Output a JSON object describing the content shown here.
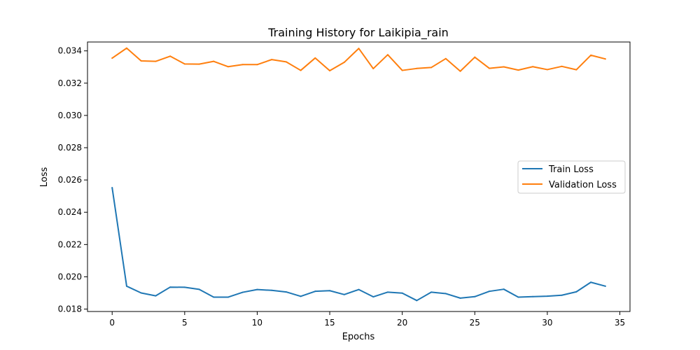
{
  "chart_data": {
    "type": "line",
    "title": "Training History for Laikipia_rain",
    "xlabel": "Epochs",
    "ylabel": "Loss",
    "xlim": [
      -1.7,
      35.7
    ],
    "ylim": [
      0.01785,
      0.03455
    ],
    "xticks": [
      0,
      5,
      10,
      15,
      20,
      25,
      30,
      35
    ],
    "xtick_labels": [
      "0",
      "5",
      "10",
      "15",
      "20",
      "25",
      "30",
      "35"
    ],
    "yticks": [
      0.018,
      0.02,
      0.022,
      0.024,
      0.026,
      0.028,
      0.03,
      0.032,
      0.034
    ],
    "ytick_labels": [
      "0.018",
      "0.020",
      "0.022",
      "0.024",
      "0.026",
      "0.028",
      "0.030",
      "0.032",
      "0.034"
    ],
    "grid": false,
    "legend_position": "center-right",
    "x": [
      0,
      1,
      2,
      3,
      4,
      5,
      6,
      7,
      8,
      9,
      10,
      11,
      12,
      13,
      14,
      15,
      16,
      17,
      18,
      19,
      20,
      21,
      22,
      23,
      24,
      25,
      26,
      27,
      28,
      29,
      30,
      31,
      32,
      33,
      34
    ],
    "series": [
      {
        "name": "Train Loss",
        "color": "#1f77b4",
        "values": [
          0.02552,
          0.01942,
          0.019,
          0.01882,
          0.01936,
          0.01935,
          0.01922,
          0.01874,
          0.01874,
          0.01904,
          0.01921,
          0.01916,
          0.01906,
          0.01879,
          0.0191,
          0.01914,
          0.0189,
          0.01921,
          0.01876,
          0.01905,
          0.01899,
          0.01853,
          0.01905,
          0.01896,
          0.01868,
          0.01877,
          0.0191,
          0.01923,
          0.01874,
          0.01877,
          0.0188,
          0.01886,
          0.01907,
          0.01966,
          0.01942
        ]
      },
      {
        "name": "Validation Loss",
        "color": "#ff7f0e",
        "values": [
          0.03355,
          0.03417,
          0.03338,
          0.03335,
          0.03367,
          0.03319,
          0.03318,
          0.03335,
          0.03302,
          0.03315,
          0.03315,
          0.03346,
          0.03332,
          0.03279,
          0.03356,
          0.03277,
          0.03329,
          0.03415,
          0.0329,
          0.03376,
          0.03279,
          0.03291,
          0.03297,
          0.03352,
          0.03274,
          0.03361,
          0.03292,
          0.03301,
          0.03281,
          0.03302,
          0.03284,
          0.03304,
          0.03283,
          0.03373,
          0.0335
        ]
      }
    ]
  }
}
